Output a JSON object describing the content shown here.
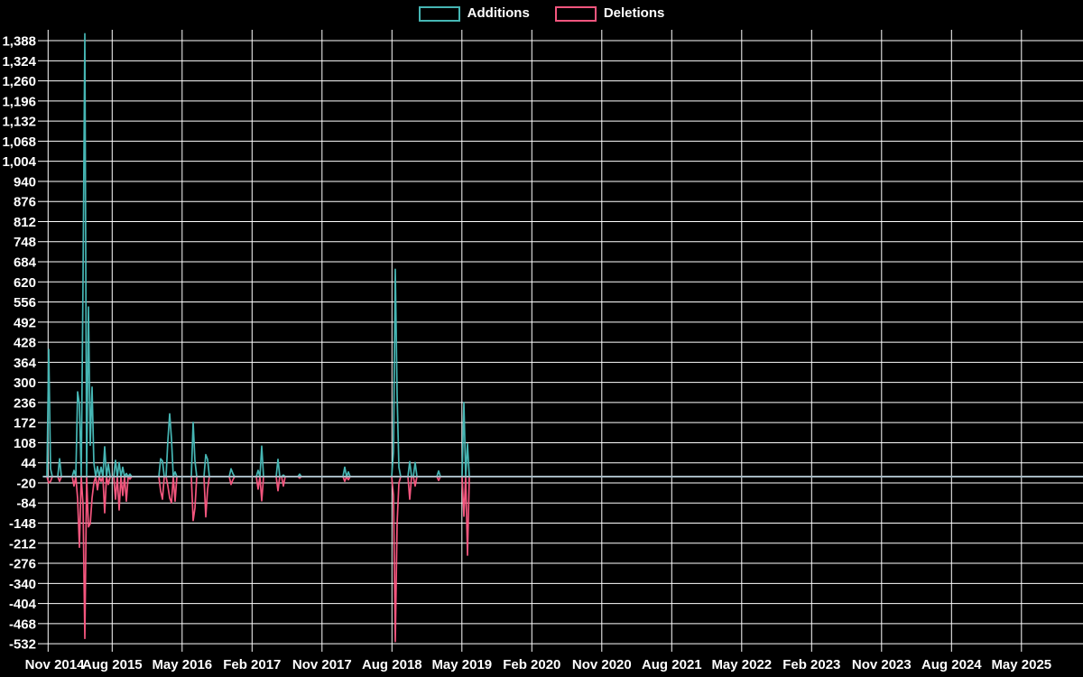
{
  "page": {
    "background": "#000000",
    "text_color": "#ffffff"
  },
  "legend": {
    "items": [
      {
        "label": "Additions",
        "color": "#46b6b4"
      },
      {
        "label": "Deletions",
        "color": "#f4567e"
      }
    ]
  },
  "chart_data": {
    "type": "line",
    "title": "",
    "description": "Weekly code additions (teal) and deletions (pink) over time; flat at zero outside activity bursts",
    "grid": true,
    "legend_position": "top-center",
    "background": "#000000",
    "grid_color": "#ffffff",
    "text_color": "#ffffff",
    "zero_line_color": "#a6b8c2",
    "baseline": 0,
    "x_axis": {
      "unit": "weeks (1 data point per week, axis labeled every 9 months)",
      "tick_labels": [
        "Nov 2014",
        "Aug 2015",
        "May 2016",
        "Feb 2017",
        "Nov 2017",
        "Aug 2018",
        "May 2019",
        "Feb 2020",
        "Nov 2020",
        "Aug 2021",
        "May 2022",
        "Feb 2023",
        "Nov 2023",
        "Aug 2024",
        "May 2025"
      ]
    },
    "y_axis": {
      "min": -532,
      "max": 1388,
      "step": 64,
      "ticks": [
        1388,
        1324,
        1260,
        1196,
        1132,
        1068,
        1004,
        940,
        876,
        812,
        748,
        684,
        620,
        556,
        492,
        428,
        364,
        300,
        236,
        172,
        108,
        44,
        -20,
        -84,
        -148,
        -212,
        -276,
        -340,
        -404,
        -468,
        -532
      ],
      "tick_labels": [
        "1,388",
        "1,324",
        "1,260",
        "1,196",
        "1,132",
        "1,068",
        "1,004",
        "940",
        "876",
        "812",
        "748",
        "684",
        "620",
        "556",
        "492",
        "428",
        "364",
        "300",
        "236",
        "172",
        "108",
        "44",
        "-20",
        "-84",
        "-148",
        "-212",
        "-276",
        "-340",
        "-404",
        "-468",
        "-532"
      ]
    },
    "weeks_total": 576,
    "series": [
      {
        "name": "Additions",
        "color": "#46b6b4",
        "default": 0,
        "points": [
          [
            3,
            405
          ],
          [
            4,
            25
          ],
          [
            9,
            57
          ],
          [
            17,
            20
          ],
          [
            19,
            270
          ],
          [
            20,
            230
          ],
          [
            22,
            620
          ],
          [
            23,
            1410
          ],
          [
            25,
            540
          ],
          [
            26,
            100
          ],
          [
            27,
            285
          ],
          [
            28,
            44
          ],
          [
            30,
            32
          ],
          [
            32,
            30
          ],
          [
            34,
            95
          ],
          [
            36,
            40
          ],
          [
            40,
            52
          ],
          [
            42,
            45
          ],
          [
            44,
            30
          ],
          [
            46,
            10
          ],
          [
            48,
            8
          ],
          [
            65,
            57
          ],
          [
            66,
            50
          ],
          [
            69,
            115
          ],
          [
            70,
            200
          ],
          [
            71,
            120
          ],
          [
            73,
            15
          ],
          [
            83,
            173
          ],
          [
            84,
            50
          ],
          [
            90,
            70
          ],
          [
            91,
            55
          ],
          [
            104,
            25
          ],
          [
            105,
            10
          ],
          [
            119,
            20
          ],
          [
            121,
            97
          ],
          [
            130,
            55
          ],
          [
            133,
            5
          ],
          [
            142,
            8
          ],
          [
            167,
            30
          ],
          [
            169,
            15
          ],
          [
            194,
            80
          ],
          [
            195,
            660
          ],
          [
            196,
            262
          ],
          [
            197,
            30
          ],
          [
            203,
            48
          ],
          [
            206,
            45
          ],
          [
            219,
            18
          ],
          [
            233,
            236
          ],
          [
            235,
            104
          ]
        ]
      },
      {
        "name": "Deletions",
        "color": "#f4567e",
        "default": 0,
        "points": [
          [
            3,
            -20
          ],
          [
            4,
            -15
          ],
          [
            9,
            -15
          ],
          [
            17,
            -30
          ],
          [
            19,
            -70
          ],
          [
            20,
            -225
          ],
          [
            22,
            -90
          ],
          [
            23,
            -515
          ],
          [
            25,
            -160
          ],
          [
            26,
            -150
          ],
          [
            27,
            -68
          ],
          [
            28,
            -20
          ],
          [
            30,
            -42
          ],
          [
            32,
            -15
          ],
          [
            34,
            -115
          ],
          [
            36,
            -25
          ],
          [
            40,
            -72
          ],
          [
            42,
            -106
          ],
          [
            44,
            -60
          ],
          [
            46,
            -78
          ],
          [
            48,
            -8
          ],
          [
            65,
            -46
          ],
          [
            66,
            -72
          ],
          [
            69,
            -30
          ],
          [
            70,
            -68
          ],
          [
            71,
            -83
          ],
          [
            73,
            -78
          ],
          [
            83,
            -140
          ],
          [
            84,
            -100
          ],
          [
            90,
            -128
          ],
          [
            91,
            -40
          ],
          [
            104,
            -25
          ],
          [
            105,
            -10
          ],
          [
            119,
            -40
          ],
          [
            121,
            -77
          ],
          [
            130,
            -45
          ],
          [
            133,
            -30
          ],
          [
            142,
            -5
          ],
          [
            167,
            -15
          ],
          [
            169,
            -10
          ],
          [
            194,
            -60
          ],
          [
            195,
            -525
          ],
          [
            196,
            -150
          ],
          [
            197,
            -20
          ],
          [
            203,
            -72
          ],
          [
            206,
            -30
          ],
          [
            219,
            -12
          ],
          [
            233,
            -126
          ],
          [
            235,
            -250
          ]
        ]
      }
    ]
  }
}
